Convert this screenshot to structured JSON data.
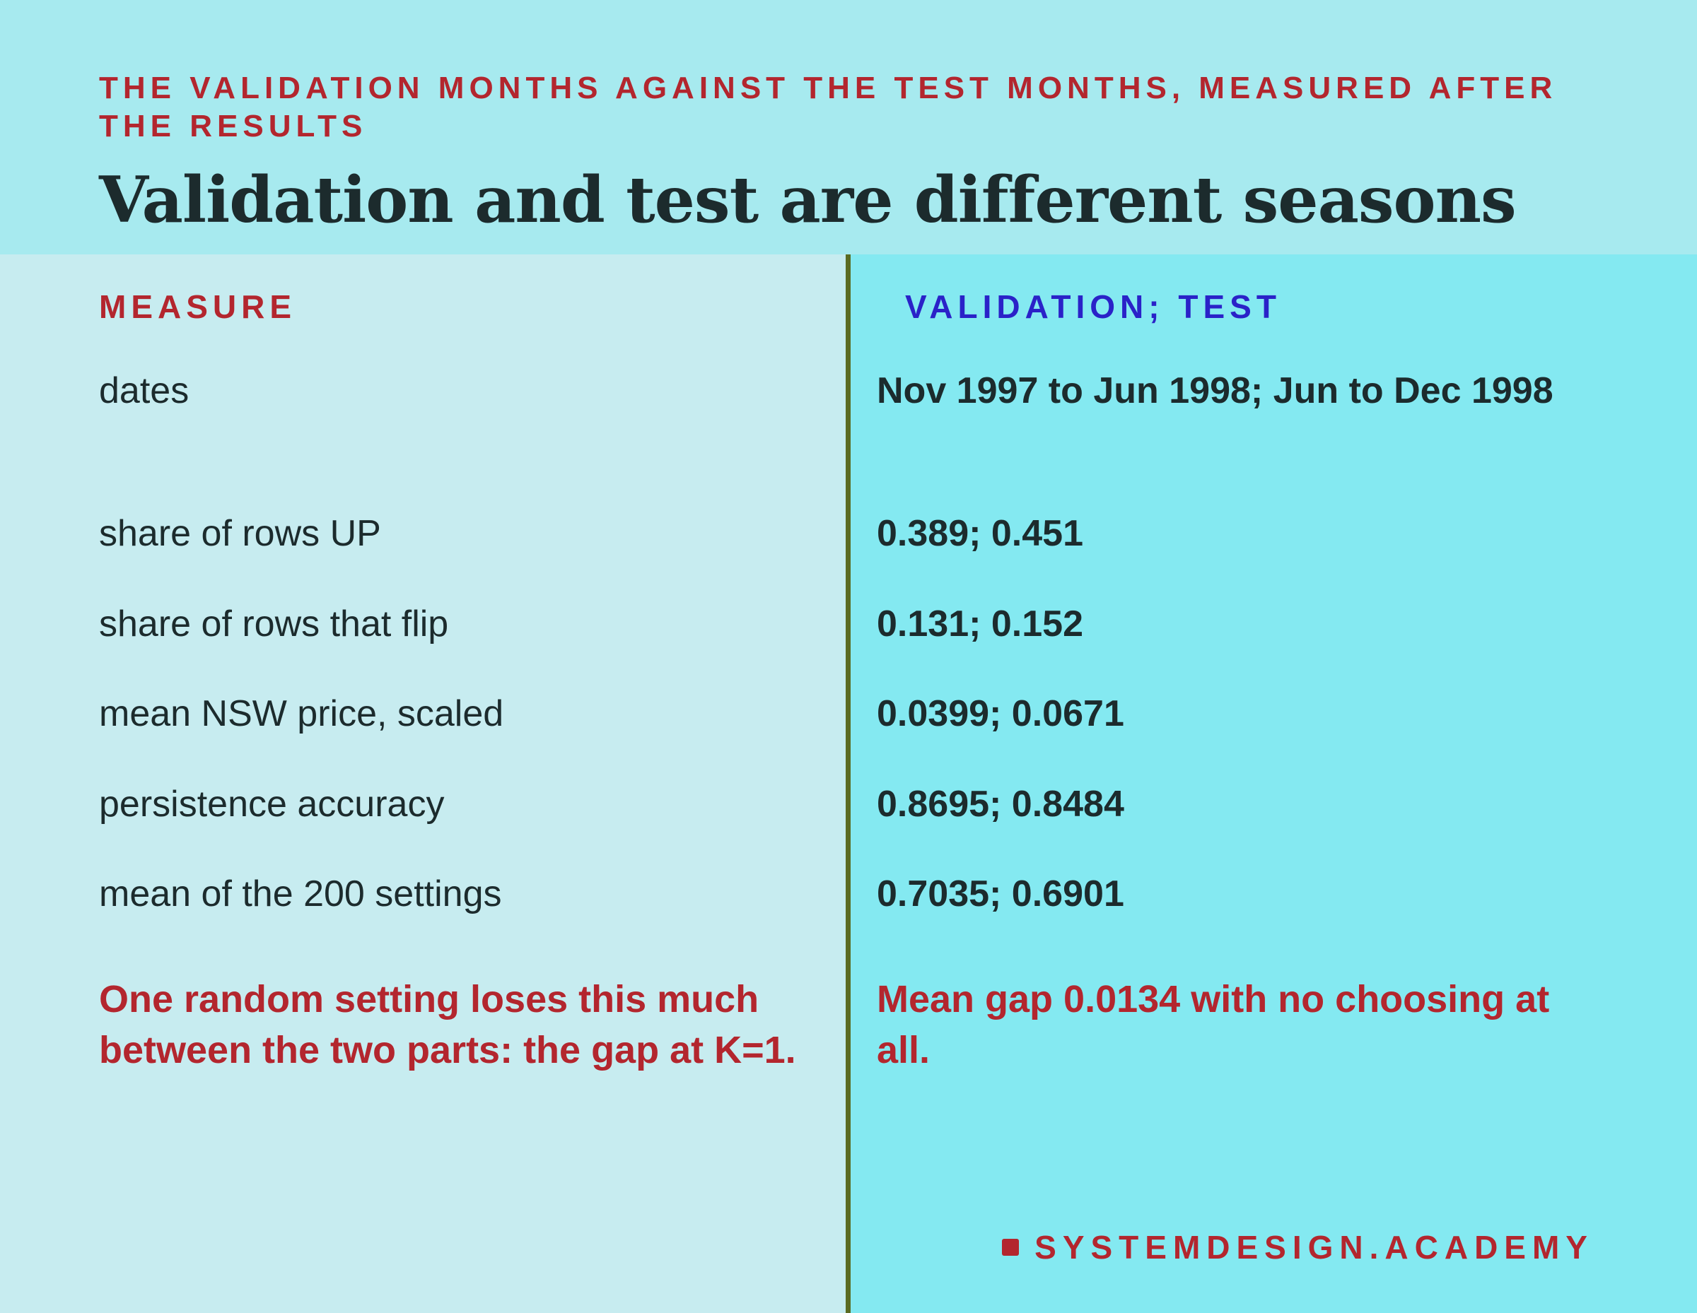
{
  "header": {
    "kicker": "THE VALIDATION MONTHS AGAINST THE TEST MONTHS, MEASURED AFTER THE RESULTS",
    "title": "Validation and test are different seasons"
  },
  "table": {
    "columns": {
      "left": "MEASURE",
      "right": "VALIDATION; TEST"
    },
    "rows": [
      {
        "measure": "dates",
        "value": "Nov 1997 to Jun 1998; Jun to Dec 1998"
      },
      {
        "measure": "share of rows UP",
        "value": "0.389; 0.451"
      },
      {
        "measure": "share of rows that flip",
        "value": "0.131; 0.152"
      },
      {
        "measure": "mean NSW price, scaled",
        "value": "0.0399; 0.0671"
      },
      {
        "measure": "persistence accuracy",
        "value": "0.8695; 0.8484"
      },
      {
        "measure": "mean of the 200 settings",
        "value": "0.7035; 0.6901"
      }
    ]
  },
  "notes": {
    "left": "One random setting loses this much between the two parts: the gap at K=1.",
    "right": "Mean gap 0.0134 with no choosing at all."
  },
  "footer": {
    "brand": "SYSTEMDESIGN.ACADEMY"
  },
  "colors": {
    "header_bg": "#a7eaef",
    "left_bg": "#c7ecf0",
    "right_bg": "#84e9f1",
    "accent_red": "#b3262e",
    "accent_blue": "#2a22c8",
    "divider": "#5a6b22",
    "text": "#1c2b2d"
  }
}
